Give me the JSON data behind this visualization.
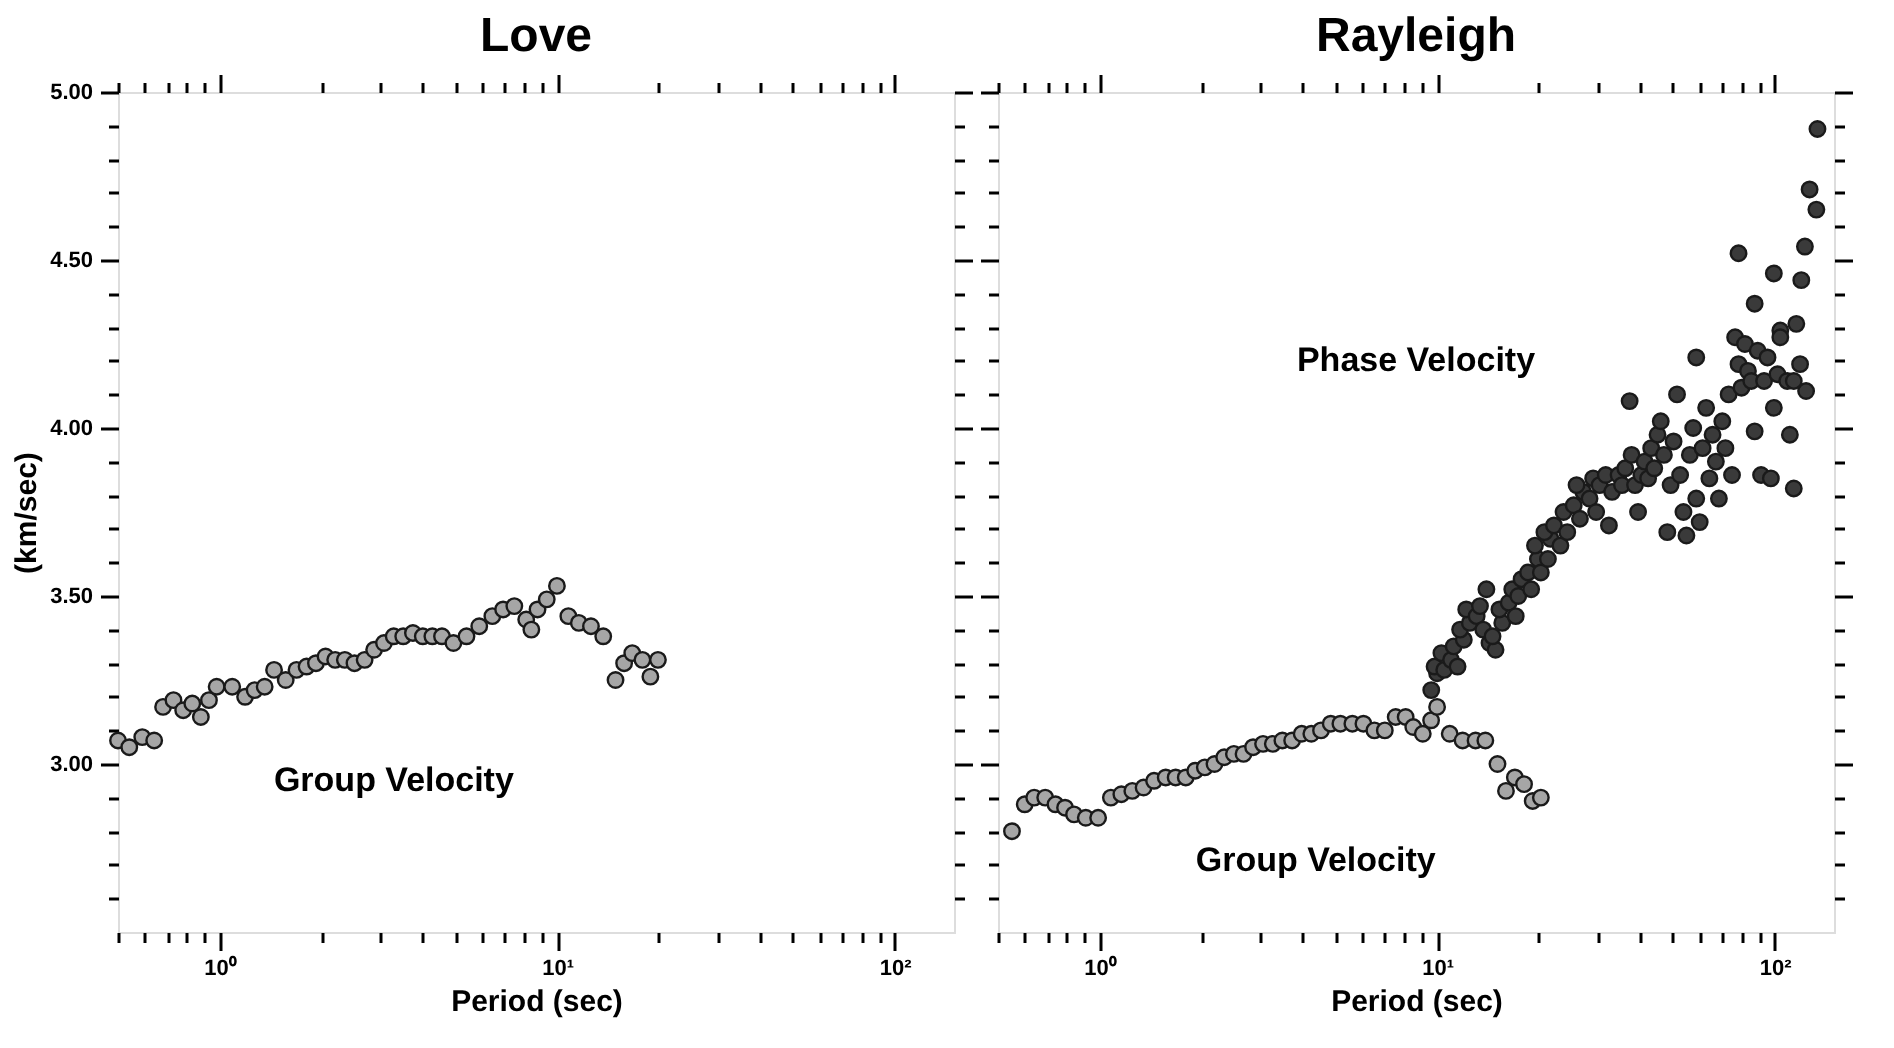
{
  "chart_data": [
    {
      "type": "scatter",
      "title": "Love",
      "xlabel": "Period (sec)",
      "ylabel": "(km/sec)",
      "log": "x",
      "marker": "circle",
      "xlim": [
        0.5,
        150
      ],
      "ylim": [
        2.5,
        5.0
      ],
      "xticks": [
        {
          "value": 0.5,
          "label": null
        },
        {
          "value": 0.6,
          "label": null
        },
        {
          "value": 0.7,
          "label": null
        },
        {
          "value": 0.8,
          "label": null
        },
        {
          "value": 0.9,
          "label": null
        },
        {
          "value": 1,
          "label": "10⁰"
        },
        {
          "value": 2,
          "label": null
        },
        {
          "value": 3,
          "label": null
        },
        {
          "value": 4,
          "label": null
        },
        {
          "value": 5,
          "label": null
        },
        {
          "value": 6,
          "label": null
        },
        {
          "value": 7,
          "label": null
        },
        {
          "value": 8,
          "label": null
        },
        {
          "value": 9,
          "label": null
        },
        {
          "value": 10,
          "label": "10¹"
        },
        {
          "value": 20,
          "label": null
        },
        {
          "value": 30,
          "label": null
        },
        {
          "value": 40,
          "label": null
        },
        {
          "value": 50,
          "label": null
        },
        {
          "value": 60,
          "label": null
        },
        {
          "value": 70,
          "label": null
        },
        {
          "value": 80,
          "label": null
        },
        {
          "value": 90,
          "label": null
        },
        {
          "value": 100,
          "label": "10²"
        }
      ],
      "yticks": [
        {
          "value": 2.6,
          "label": null
        },
        {
          "value": 2.7,
          "label": null
        },
        {
          "value": 2.8,
          "label": null
        },
        {
          "value": 2.9,
          "label": null
        },
        {
          "value": 3.0,
          "label": "3.00"
        },
        {
          "value": 3.1,
          "label": null
        },
        {
          "value": 3.2,
          "label": null
        },
        {
          "value": 3.3,
          "label": null
        },
        {
          "value": 3.4,
          "label": null
        },
        {
          "value": 3.5,
          "label": "3.50"
        },
        {
          "value": 3.6,
          "label": null
        },
        {
          "value": 3.7,
          "label": null
        },
        {
          "value": 3.8,
          "label": null
        },
        {
          "value": 3.9,
          "label": null
        },
        {
          "value": 4.0,
          "label": "4.00"
        },
        {
          "value": 4.1,
          "label": null
        },
        {
          "value": 4.2,
          "label": null
        },
        {
          "value": 4.3,
          "label": null
        },
        {
          "value": 4.4,
          "label": null
        },
        {
          "value": 4.5,
          "label": "4.50"
        },
        {
          "value": 4.6,
          "label": null
        },
        {
          "value": 4.7,
          "label": null
        },
        {
          "value": 4.8,
          "label": null
        },
        {
          "value": 4.9,
          "label": null
        },
        {
          "value": 5.0,
          "label": "5.00"
        }
      ],
      "series": [
        {
          "name": "Group Velocity",
          "color": "#a6a6a6",
          "x": [
            0.5,
            0.54,
            0.59,
            0.64,
            0.68,
            0.73,
            0.78,
            0.83,
            0.88,
            0.93,
            0.98,
            1.09,
            1.19,
            1.27,
            1.36,
            1.45,
            1.57,
            1.69,
            1.81,
            1.93,
            2.06,
            2.2,
            2.35,
            2.51,
            2.69,
            2.87,
            3.07,
            3.28,
            3.5,
            3.74,
            4.0,
            4.27,
            4.56,
            4.93,
            5.39,
            5.88,
            6.43,
            6.92,
            7.47,
            8.1,
            8.39,
            8.75,
            9.32,
            9.99,
            10.8,
            11.6,
            12.6,
            13.7,
            14.9,
            15.8,
            16.7,
            17.9,
            18.9,
            19.9
          ],
          "values": [
            3.07,
            3.05,
            3.08,
            3.07,
            3.17,
            3.19,
            3.16,
            3.18,
            3.14,
            3.19,
            3.23,
            3.23,
            3.2,
            3.22,
            3.23,
            3.28,
            3.25,
            3.28,
            3.29,
            3.3,
            3.32,
            3.31,
            3.31,
            3.3,
            3.31,
            3.34,
            3.36,
            3.38,
            3.38,
            3.39,
            3.38,
            3.38,
            3.38,
            3.36,
            3.38,
            3.41,
            3.44,
            3.46,
            3.47,
            3.43,
            3.4,
            3.46,
            3.49,
            3.53,
            3.44,
            3.42,
            3.41,
            3.38,
            3.25,
            3.3,
            3.33,
            3.31,
            3.26,
            3.31
          ]
        }
      ]
    },
    {
      "type": "scatter",
      "title": "Rayleigh",
      "xlabel": "Period (sec)",
      "log": "x",
      "marker": "circle",
      "tick_labels": "x",
      "xlim": [
        0.5,
        150
      ],
      "ylim": [
        2.5,
        5.0
      ],
      "xticks": [
        {
          "value": 0.5,
          "label": null
        },
        {
          "value": 0.6,
          "label": null
        },
        {
          "value": 0.7,
          "label": null
        },
        {
          "value": 0.8,
          "label": null
        },
        {
          "value": 0.9,
          "label": null
        },
        {
          "value": 1,
          "label": "10⁰"
        },
        {
          "value": 2,
          "label": null
        },
        {
          "value": 3,
          "label": null
        },
        {
          "value": 4,
          "label": null
        },
        {
          "value": 5,
          "label": null
        },
        {
          "value": 6,
          "label": null
        },
        {
          "value": 7,
          "label": null
        },
        {
          "value": 8,
          "label": null
        },
        {
          "value": 9,
          "label": null
        },
        {
          "value": 10,
          "label": "10¹"
        },
        {
          "value": 20,
          "label": null
        },
        {
          "value": 30,
          "label": null
        },
        {
          "value": 40,
          "label": null
        },
        {
          "value": 50,
          "label": null
        },
        {
          "value": 60,
          "label": null
        },
        {
          "value": 70,
          "label": null
        },
        {
          "value": 80,
          "label": null
        },
        {
          "value": 90,
          "label": null
        },
        {
          "value": 100,
          "label": "10²"
        }
      ],
      "yticks": [
        {
          "value": 2.6,
          "label": null
        },
        {
          "value": 2.7,
          "label": null
        },
        {
          "value": 2.8,
          "label": null
        },
        {
          "value": 2.9,
          "label": null
        },
        3.0,
        {
          "value": 3.1,
          "label": null
        },
        {
          "value": 3.2,
          "label": null
        },
        {
          "value": 3.3,
          "label": null
        },
        {
          "value": 3.4,
          "label": null
        },
        3.5,
        {
          "value": 3.6,
          "label": null
        },
        {
          "value": 3.7,
          "label": null
        },
        {
          "value": 3.8,
          "label": null
        },
        {
          "value": 3.9,
          "label": null
        },
        4.0,
        {
          "value": 4.1,
          "label": null
        },
        {
          "value": 4.2,
          "label": null
        },
        {
          "value": 4.3,
          "label": null
        },
        {
          "value": 4.4,
          "label": null
        },
        4.5,
        {
          "value": 4.6,
          "label": null
        },
        {
          "value": 4.7,
          "label": null
        },
        {
          "value": 4.8,
          "label": null
        },
        {
          "value": 4.9,
          "label": null
        },
        5.0
      ],
      "series": [
        {
          "name": "Group Velocity",
          "color": "#a6a6a6",
          "x": [
            0.55,
            0.6,
            0.64,
            0.69,
            0.74,
            0.79,
            0.84,
            0.91,
            0.99,
            1.08,
            1.16,
            1.25,
            1.35,
            1.45,
            1.57,
            1.68,
            1.8,
            1.92,
            2.05,
            2.19,
            2.34,
            2.5,
            2.67,
            2.85,
            3.05,
            3.26,
            3.48,
            3.72,
            3.97,
            4.24,
            4.53,
            4.84,
            5.17,
            5.61,
            6.05,
            6.52,
            7.0,
            7.54,
            8.07,
            8.5,
            9.07,
            9.6,
            10.0,
            10.9,
            11.9,
            13.0,
            13.9,
            15.1,
            16.0,
            17.0,
            18.1,
            19.2,
            20.3
          ],
          "values": [
            2.8,
            2.88,
            2.9,
            2.9,
            2.88,
            2.87,
            2.85,
            2.84,
            2.84,
            2.9,
            2.91,
            2.92,
            2.93,
            2.95,
            2.96,
            2.96,
            2.96,
            2.98,
            2.99,
            3.0,
            3.02,
            3.03,
            3.03,
            3.05,
            3.06,
            3.06,
            3.07,
            3.07,
            3.09,
            3.09,
            3.1,
            3.12,
            3.12,
            3.12,
            3.12,
            3.1,
            3.1,
            3.14,
            3.14,
            3.11,
            3.09,
            3.13,
            3.17,
            3.09,
            3.07,
            3.07,
            3.07,
            3.0,
            2.92,
            2.96,
            2.94,
            2.89,
            2.9
          ]
        },
        {
          "name": "Phase Velocity",
          "color": "#3a3a3a",
          "x": [
            9.61,
            10.0,
            9.83,
            10.5,
            10.3,
            11.0,
            11.5,
            11.2,
            12.0,
            11.7,
            12.5,
            12.2,
            13.1,
            13.7,
            14.0,
            13.4,
            14.3,
            14.9,
            14.6,
            15.6,
            15.3,
            16.3,
            16.7,
            17.1,
            17.8,
            17.4,
            18.6,
            19.0,
            19.9,
            19.5,
            20.3,
            21.3,
            21.7,
            20.8,
            22.2,
            23.2,
            23.7,
            24.3,
            25.4,
            26.5,
            27.1,
            25.9,
            28.3,
            29.0,
            30.3,
            29.6,
            31.6,
            32.3,
            33.0,
            34.5,
            36.1,
            35.3,
            37.7,
            38.6,
            39.4,
            40.3,
            41.2,
            43.1,
            42.2,
            45.0,
            44.0,
            46.0,
            47.0,
            48.1,
            49.2,
            50.2,
            51.4,
            52.5,
            53.7,
            54.8,
            56.1,
            57.4,
            58.6,
            60.0,
            61.2,
            62.7,
            64.1,
            65.5,
            67.0,
            68.4,
            70.0,
            71.5,
            73.1,
            74.8,
            76.4,
            78.2,
            79.8,
            81.7,
            83.4,
            85.3,
            87.3,
            89.1,
            91.2,
            93.1,
            95.3,
            97.5,
            99.5,
            102,
            104,
            109,
            111,
            114,
            116,
            119,
            120,
            123,
            124,
            127,
            133,
            134,
            99.5,
            87.3,
            78.2,
            58.6,
            37.2,
            114,
            104
          ],
          "values": [
            3.22,
            3.27,
            3.29,
            3.28,
            3.33,
            3.31,
            3.29,
            3.35,
            3.37,
            3.4,
            3.42,
            3.46,
            3.44,
            3.4,
            3.52,
            3.47,
            3.36,
            3.34,
            3.38,
            3.42,
            3.46,
            3.48,
            3.52,
            3.44,
            3.55,
            3.5,
            3.57,
            3.52,
            3.61,
            3.65,
            3.57,
            3.61,
            3.67,
            3.69,
            3.71,
            3.65,
            3.75,
            3.69,
            3.77,
            3.73,
            3.81,
            3.83,
            3.79,
            3.85,
            3.83,
            3.75,
            3.86,
            3.71,
            3.81,
            3.86,
            3.88,
            3.83,
            3.92,
            3.83,
            3.75,
            3.86,
            3.9,
            3.94,
            3.85,
            3.98,
            3.88,
            4.02,
            3.92,
            3.69,
            3.83,
            3.96,
            4.1,
            3.86,
            3.75,
            3.68,
            3.92,
            4.0,
            3.79,
            3.72,
            3.94,
            4.06,
            3.85,
            3.98,
            3.9,
            3.79,
            4.02,
            3.94,
            4.1,
            3.86,
            4.27,
            4.19,
            4.12,
            4.25,
            4.17,
            4.14,
            3.99,
            4.23,
            3.86,
            4.14,
            4.21,
            3.85,
            4.06,
            4.16,
            4.29,
            4.14,
            3.98,
            3.82,
            4.31,
            4.19,
            4.44,
            4.54,
            4.11,
            4.71,
            4.65,
            4.89,
            4.46,
            4.37,
            4.52,
            4.21,
            4.08,
            4.14,
            4.27
          ]
        }
      ]
    }
  ]
}
